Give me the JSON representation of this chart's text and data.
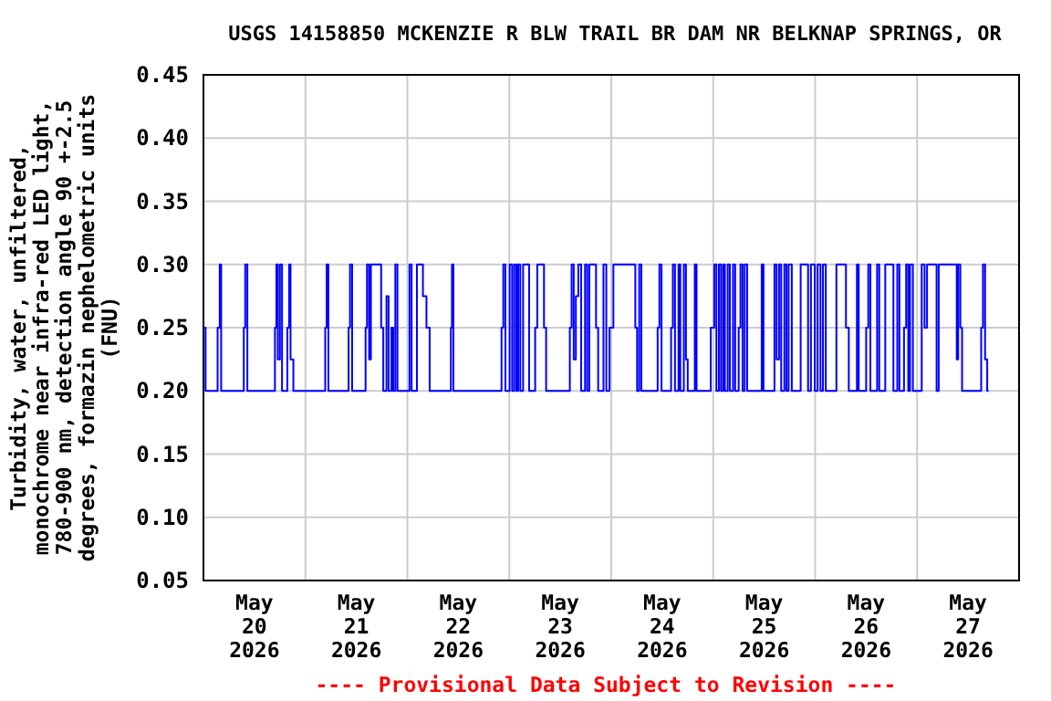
{
  "chart_data": {
    "type": "step",
    "title": "USGS 14158850 MCKENZIE R BLW TRAIL BR DAM NR BELKNAP SPRINGS, OR",
    "ylabel": "Turbidity, water, unfiltered,\nmonochrome near infra-red LED light,\n780-900 nm, detection angle 90 +-2.5\ndegrees, formazin nephelometric units\n(FNU)",
    "annotations": [
      "---- Provisional Data Subject to Revision ----"
    ],
    "xlim": [
      "2026-05-20",
      "2026-05-28"
    ],
    "xticks": [
      {
        "value": "2026-05-20T12:00",
        "label": "May\n20\n2026"
      },
      {
        "value": "2026-05-21",
        "label": null
      },
      {
        "value": "2026-05-21T12:00",
        "label": "May\n21\n2026"
      },
      {
        "value": "2026-05-22",
        "label": null
      },
      {
        "value": "2026-05-22T12:00",
        "label": "May\n22\n2026"
      },
      {
        "value": "2026-05-23",
        "label": null
      },
      {
        "value": "2026-05-23T12:00",
        "label": "May\n23\n2026"
      },
      {
        "value": "2026-05-24",
        "label": null
      },
      {
        "value": "2026-05-24T12:00",
        "label": "May\n24\n2026"
      },
      {
        "value": "2026-05-25",
        "label": null
      },
      {
        "value": "2026-05-25T12:00",
        "label": "May\n25\n2026"
      },
      {
        "value": "2026-05-26",
        "label": null
      },
      {
        "value": "2026-05-26T12:00",
        "label": "May\n26\n2026"
      },
      {
        "value": "2026-05-27",
        "label": null
      },
      {
        "value": "2026-05-27T12:00",
        "label": "May\n27\n2026"
      }
    ],
    "ylim": [
      0.05,
      0.45
    ],
    "yticks": [
      {
        "value": 0.05,
        "label": "0.05"
      },
      {
        "value": 0.1,
        "label": "0.10"
      },
      {
        "value": 0.15,
        "label": "0.15"
      },
      {
        "value": 0.2,
        "label": "0.20"
      },
      {
        "value": 0.25,
        "label": "0.25"
      },
      {
        "value": 0.3,
        "label": "0.30"
      },
      {
        "value": 0.35,
        "label": "0.35"
      },
      {
        "value": 0.4,
        "label": "0.40"
      },
      {
        "value": 0.45,
        "label": "0.45"
      }
    ],
    "grid": true,
    "marker": "none",
    "line_style": "solid",
    "series": [
      {
        "color": "#0000ff",
        "x": [
          "2026-05-20T00:00",
          "2026-05-20T00:30",
          "2026-05-20T03:20",
          "2026-05-20T03:50",
          "2026-05-20T04:10",
          "2026-05-20T09:30",
          "2026-05-20T09:50",
          "2026-05-20T10:20",
          "2026-05-20T16:50",
          "2026-05-20T17:10",
          "2026-05-20T17:30",
          "2026-05-20T18:00",
          "2026-05-20T18:30",
          "2026-05-20T19:45",
          "2026-05-20T20:10",
          "2026-05-20T20:30",
          "2026-05-20T21:10",
          "2026-05-21T04:40",
          "2026-05-21T05:00",
          "2026-05-21T05:25",
          "2026-05-21T10:10",
          "2026-05-21T10:30",
          "2026-05-21T11:00",
          "2026-05-21T14:10",
          "2026-05-21T14:30",
          "2026-05-21T15:00",
          "2026-05-21T15:25",
          "2026-05-21T17:50",
          "2026-05-21T18:20",
          "2026-05-21T19:05",
          "2026-05-21T19:35",
          "2026-05-21T20:15",
          "2026-05-21T20:40",
          "2026-05-21T21:10",
          "2026-05-21T21:40",
          "2026-05-22T00:30",
          "2026-05-22T01:00",
          "2026-05-22T02:15",
          "2026-05-22T03:40",
          "2026-05-22T04:30",
          "2026-05-22T05:15",
          "2026-05-22T10:15",
          "2026-05-22T10:30",
          "2026-05-22T10:50",
          "2026-05-22T22:10",
          "2026-05-22T22:35",
          "2026-05-22T23:05",
          "2026-05-23T00:05",
          "2026-05-23T00:40",
          "2026-05-23T01:10",
          "2026-05-23T01:40",
          "2026-05-23T02:05",
          "2026-05-23T02:35",
          "2026-05-23T03:15",
          "2026-05-23T04:40",
          "2026-05-23T06:05",
          "2026-05-23T06:35",
          "2026-05-23T08:10",
          "2026-05-23T08:40",
          "2026-05-23T14:15",
          "2026-05-23T14:40",
          "2026-05-23T15:10",
          "2026-05-23T15:40",
          "2026-05-23T16:15",
          "2026-05-23T16:55",
          "2026-05-23T17:50",
          "2026-05-23T18:20",
          "2026-05-23T18:50",
          "2026-05-23T20:25",
          "2026-05-23T20:55",
          "2026-05-23T22:10",
          "2026-05-23T22:50",
          "2026-05-23T23:35",
          "2026-05-24T00:30",
          "2026-05-24T05:40",
          "2026-05-24T06:05",
          "2026-05-24T06:35",
          "2026-05-24T07:05",
          "2026-05-24T10:55",
          "2026-05-24T11:20",
          "2026-05-24T11:50",
          "2026-05-24T14:05",
          "2026-05-24T14:30",
          "2026-05-24T15:00",
          "2026-05-24T15:50",
          "2026-05-24T16:15",
          "2026-05-24T17:05",
          "2026-05-24T17:35",
          "2026-05-24T18:00",
          "2026-05-24T19:40",
          "2026-05-24T20:05",
          "2026-05-24T23:25",
          "2026-05-25T00:15",
          "2026-05-25T00:45",
          "2026-05-25T01:20",
          "2026-05-25T01:50",
          "2026-05-25T02:20",
          "2026-05-25T02:45",
          "2026-05-25T03:25",
          "2026-05-25T03:55",
          "2026-05-25T04:40",
          "2026-05-25T05:10",
          "2026-05-25T06:00",
          "2026-05-25T06:25",
          "2026-05-25T06:55",
          "2026-05-25T07:25",
          "2026-05-25T08:00",
          "2026-05-25T11:25",
          "2026-05-25T11:50",
          "2026-05-25T14:25",
          "2026-05-25T14:55",
          "2026-05-25T15:30",
          "2026-05-25T16:00",
          "2026-05-25T16:45",
          "2026-05-25T17:15",
          "2026-05-25T17:45",
          "2026-05-25T18:30",
          "2026-05-25T20:35",
          "2026-05-25T22:20",
          "2026-05-25T23:00",
          "2026-05-25T23:55",
          "2026-05-26T00:35",
          "2026-05-26T01:15",
          "2026-05-26T01:50",
          "2026-05-26T02:30",
          "2026-05-26T05:00",
          "2026-05-26T07:15",
          "2026-05-26T07:55",
          "2026-05-26T09:50",
          "2026-05-26T10:15",
          "2026-05-26T12:00",
          "2026-05-26T12:30",
          "2026-05-26T13:00",
          "2026-05-26T14:35",
          "2026-05-26T15:05",
          "2026-05-26T16:30",
          "2026-05-26T18:25",
          "2026-05-26T19:20",
          "2026-05-26T19:50",
          "2026-05-26T20:55",
          "2026-05-26T21:25",
          "2026-05-26T21:55",
          "2026-05-26T22:20",
          "2026-05-26T23:00",
          "2026-05-27T01:05",
          "2026-05-27T01:45",
          "2026-05-27T02:20",
          "2026-05-27T04:35",
          "2026-05-27T05:05",
          "2026-05-27T09:20",
          "2026-05-27T09:40",
          "2026-05-27T10:10",
          "2026-05-27T10:35",
          "2026-05-27T15:05",
          "2026-05-27T15:30",
          "2026-05-27T16:00",
          "2026-05-27T16:30",
          "2026-05-27T16:50"
        ],
        "values": [
          0.25,
          0.2,
          0.25,
          0.3,
          0.2,
          0.25,
          0.3,
          0.2,
          0.25,
          0.3,
          0.225,
          0.3,
          0.2,
          0.25,
          0.3,
          0.225,
          0.2,
          0.25,
          0.3,
          0.2,
          0.25,
          0.3,
          0.2,
          0.25,
          0.3,
          0.225,
          0.3,
          0.25,
          0.2,
          0.275,
          0.2,
          0.25,
          0.2,
          0.3,
          0.2,
          0.3,
          0.2,
          0.3,
          0.275,
          0.25,
          0.2,
          0.25,
          0.3,
          0.2,
          0.25,
          0.3,
          0.2,
          0.3,
          0.2,
          0.3,
          0.2,
          0.3,
          0.2,
          0.3,
          0.2,
          0.25,
          0.3,
          0.25,
          0.2,
          0.25,
          0.3,
          0.225,
          0.275,
          0.3,
          0.2,
          0.3,
          0.2,
          0.3,
          0.25,
          0.2,
          0.3,
          0.2,
          0.25,
          0.3,
          0.25,
          0.2,
          0.3,
          0.2,
          0.25,
          0.3,
          0.2,
          0.25,
          0.3,
          0.2,
          0.3,
          0.2,
          0.3,
          0.225,
          0.2,
          0.3,
          0.2,
          0.25,
          0.3,
          0.2,
          0.3,
          0.2,
          0.3,
          0.2,
          0.3,
          0.2,
          0.3,
          0.2,
          0.25,
          0.3,
          0.2,
          0.3,
          0.2,
          0.3,
          0.2,
          0.3,
          0.225,
          0.3,
          0.2,
          0.3,
          0.2,
          0.3,
          0.2,
          0.3,
          0.2,
          0.3,
          0.2,
          0.3,
          0.2,
          0.3,
          0.2,
          0.3,
          0.25,
          0.2,
          0.3,
          0.2,
          0.25,
          0.3,
          0.2,
          0.3,
          0.2,
          0.3,
          0.2,
          0.3,
          0.2,
          0.25,
          0.3,
          0.2,
          0.3,
          0.2,
          0.3,
          0.25,
          0.3,
          0.2,
          0.3,
          0.225,
          0.3,
          0.25,
          0.2,
          0.25,
          0.3,
          0.225,
          0.2,
          0.2
        ]
      }
    ]
  }
}
